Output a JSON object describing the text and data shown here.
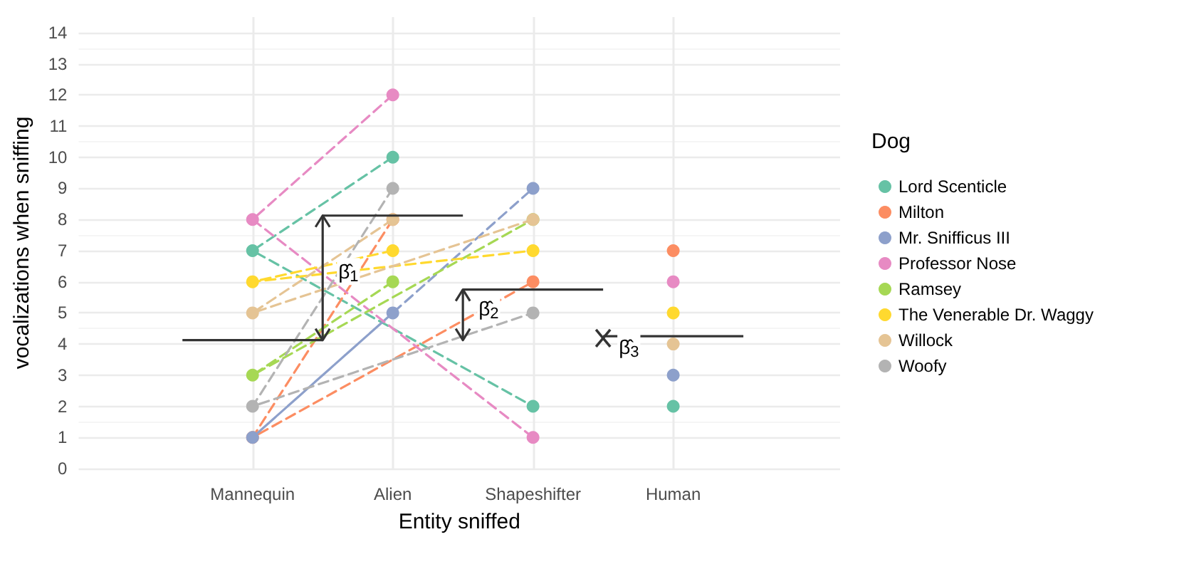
{
  "chart_data": {
    "type": "line",
    "xlabel": "Entity sniffed",
    "ylabel": "vocalizations when sniffing",
    "legend_title": "Dog",
    "categories": [
      "Mannequin",
      "Alien",
      "Shapeshifter",
      "Human"
    ],
    "series": [
      {
        "name": "Lord Scenticle",
        "color": "#66c2a5",
        "values": [
          7,
          10,
          2,
          null
        ]
      },
      {
        "name": "Milton",
        "color": "#fc8d62",
        "values": [
          1,
          8,
          6,
          null
        ]
      },
      {
        "name": "Mr. Snifficus III",
        "color": "#8da0cb",
        "values": [
          1,
          5,
          9,
          null
        ]
      },
      {
        "name": "Professor Nose",
        "color": "#e78ac3",
        "values": [
          8,
          12,
          1,
          null
        ]
      },
      {
        "name": "Ramsey",
        "color": "#a6d854",
        "values": [
          3,
          6,
          8,
          null
        ]
      },
      {
        "name": "The Venerable Dr. Waggy",
        "color": "#ffd92f",
        "values": [
          6,
          7,
          7,
          null
        ]
      },
      {
        "name": "Willock",
        "color": "#e5c494",
        "values": [
          5,
          8,
          8,
          null
        ]
      },
      {
        "name": "Woofy",
        "color": "#b3b3b3",
        "values": [
          2,
          9,
          5,
          null
        ]
      },
      {
        "type": "scatter",
        "color": "#66c2a5",
        "values": [
          null,
          null,
          null,
          2
        ]
      },
      {
        "type": "scatter",
        "color": "#fc8d62",
        "values": [
          null,
          null,
          null,
          7
        ]
      },
      {
        "type": "scatter",
        "color": "#8da0cb",
        "values": [
          null,
          null,
          null,
          3
        ]
      },
      {
        "type": "scatter",
        "color": "#e78ac3",
        "values": [
          null,
          null,
          null,
          6
        ]
      },
      {
        "type": "scatter",
        "color": "#ffd92f",
        "values": [
          null,
          null,
          null,
          5
        ]
      },
      {
        "type": "scatter",
        "color": "#e5c494",
        "values": [
          null,
          null,
          null,
          4
        ]
      }
    ],
    "ylim": [
      0,
      14.5
    ],
    "yticks": [
      0,
      1,
      2,
      3,
      4,
      5,
      6,
      7,
      8,
      9,
      10,
      11,
      12,
      13,
      14
    ],
    "ref_lines": [
      {
        "axis": "y",
        "value": 4.125,
        "color": "#333333"
      },
      {
        "axis": "y",
        "value": 8.125,
        "label": "β̂$_{1}$",
        "color": "#333333"
      },
      {
        "axis": "y",
        "value": 5.75,
        "label": "β̂$_{2}$",
        "color": "#333333"
      },
      {
        "axis": "y",
        "value": 4.25,
        "label": "β̂$_{3}$",
        "color": "#333333"
      }
    ],
    "grid": true,
    "legend": "right",
    "marker": "circle",
    "line_style": "dashed"
  }
}
